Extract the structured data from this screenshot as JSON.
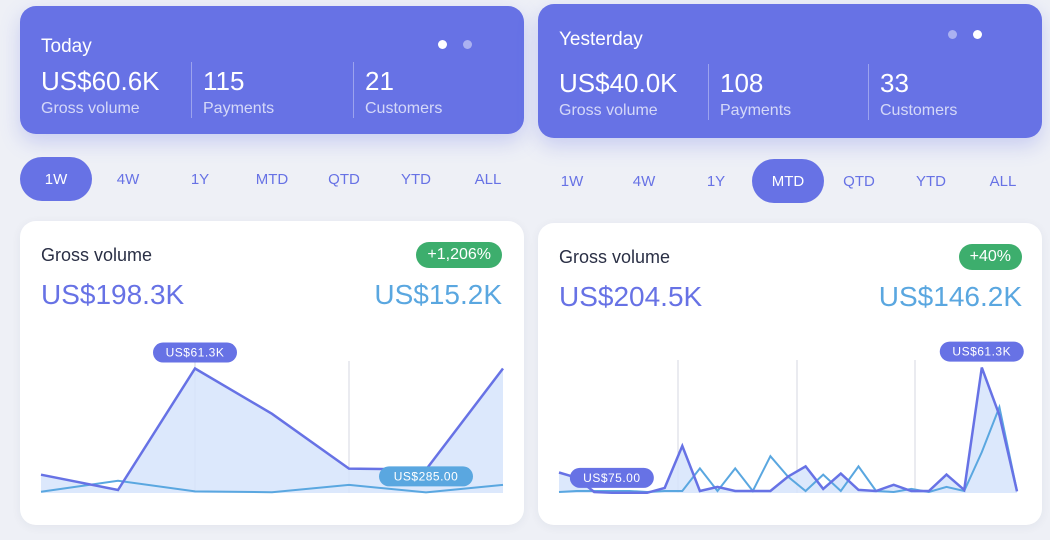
{
  "panels": [
    {
      "summary": {
        "title": "Today",
        "page_dots": [
          true,
          false
        ],
        "metrics": [
          {
            "value": "US$60.6K",
            "label": "Gross volume"
          },
          {
            "value": "115",
            "label": "Payments"
          },
          {
            "value": "21",
            "label": "Customers"
          }
        ]
      },
      "ranges": {
        "options": [
          "1W",
          "4W",
          "1Y",
          "MTD",
          "QTD",
          "YTD",
          "ALL"
        ],
        "active": "1W"
      },
      "chart": {
        "title": "Gross volume",
        "change_badge": "+1,206%",
        "current_total": "US$198.3K",
        "previous_total": "US$15.2K",
        "max_tooltip": "US$61.3K",
        "secondary_tooltip": "US$285.00",
        "colors": {
          "current": "#6772e5",
          "previous": "#5aa7e0",
          "fill": "#d6e4fb",
          "badge": "#3dae6d"
        }
      },
      "chart_data": {
        "type": "line",
        "title": "Gross volume",
        "ylim": [
          0,
          65000
        ],
        "series": [
          {
            "values": [
              9000,
              1500,
              61300,
              39000,
              12000,
              11500,
              61300
            ]
          },
          {
            "values": [
              600,
              6000,
              800,
              400,
              4000,
              285,
              4000
            ]
          }
        ]
      }
    },
    {
      "summary": {
        "title": "Yesterday",
        "page_dots": [
          false,
          true
        ],
        "metrics": [
          {
            "value": "US$40.0K",
            "label": "Gross volume"
          },
          {
            "value": "108",
            "label": "Payments"
          },
          {
            "value": "33",
            "label": "Customers"
          }
        ]
      },
      "ranges": {
        "options": [
          "1W",
          "4W",
          "1Y",
          "MTD",
          "QTD",
          "YTD",
          "ALL"
        ],
        "active": "MTD"
      },
      "chart": {
        "title": "Gross volume",
        "change_badge": "+40%",
        "current_total": "US$204.5K",
        "previous_total": "US$146.2K",
        "max_tooltip": "US$61.3K",
        "secondary_tooltip": "US$75.00",
        "colors": {
          "current": "#6772e5",
          "previous": "#5aa7e0",
          "fill": "#d6e4fb",
          "badge": "#3dae6d"
        }
      },
      "chart_data": {
        "type": "line",
        "title": "Gross volume",
        "ylim": [
          0,
          65000
        ],
        "series": [
          {
            "values": [
              10000,
              7500,
              500,
              75,
              100,
              100,
              2500,
              23000,
              1000,
              3000,
              1000,
              1000,
              1000,
              8000,
              13000,
              2000,
              9500,
              1500,
              1000,
              4000,
              1000,
              1000,
              9000,
              1500,
              61300,
              38000,
              800
            ]
          },
          {
            "values": [
              500,
              1000,
              1000,
              1000,
              1000,
              500,
              1000,
              1000,
              12000,
              1000,
              12000,
              1000,
              18000,
              8000,
              1000,
              9000,
              1000,
              13000,
              1000,
              500,
              2000,
              500,
              3000,
              1000,
              20000,
              42000,
              1000
            ]
          }
        ]
      }
    }
  ]
}
